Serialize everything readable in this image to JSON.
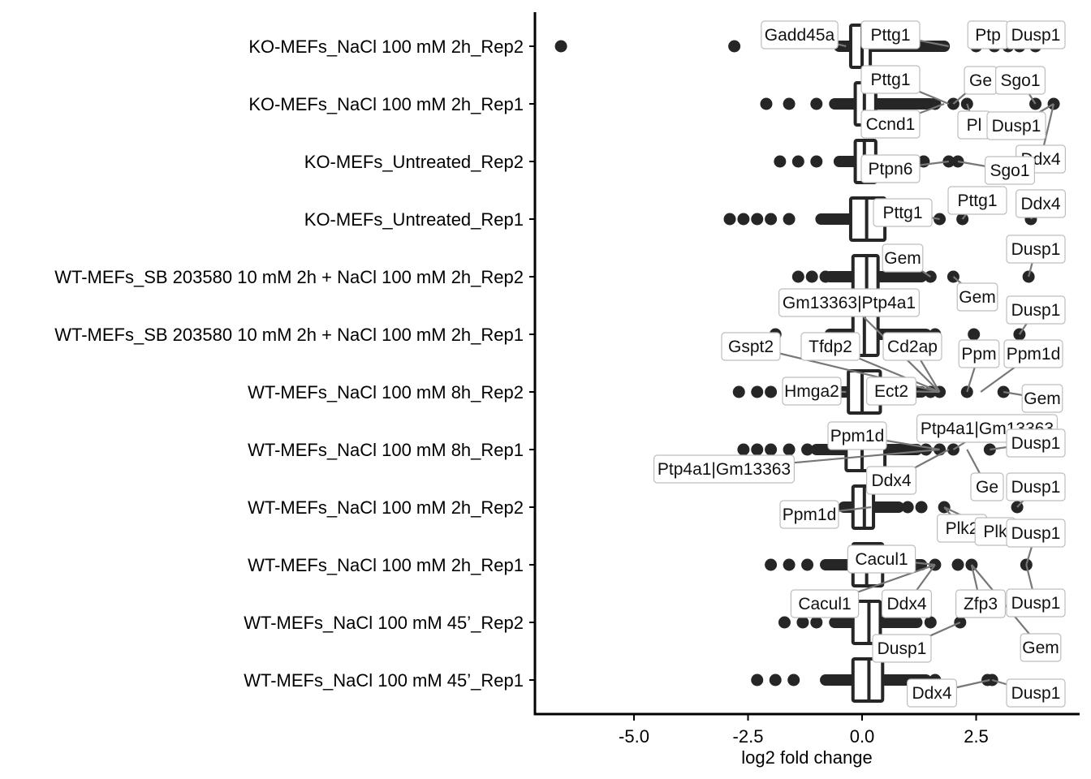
{
  "chart_data": {
    "type": "boxplot",
    "xlabel": "log2 fold change",
    "xlim": [
      -7.2,
      4.8
    ],
    "xticks": [
      -5.0,
      -2.5,
      0.0,
      2.5
    ],
    "xtick_labels": [
      "-5.0",
      "-2.5",
      "0.0",
      "2.5"
    ],
    "grid": false,
    "colors": {
      "points": "#262626",
      "box": "#262626",
      "label_border": "#bdbdbd",
      "connector": "#777777"
    },
    "categories": [
      "KO-MEFs_NaCl 100 mM 2h_Rep2",
      "KO-MEFs_NaCl 100 mM 2h_Rep1",
      "KO-MEFs_Untreated_Rep2",
      "KO-MEFs_Untreated_Rep1",
      "WT-MEFs_SB 203580 10 mM 2h + NaCl 100 mM 2h_Rep2",
      "WT-MEFs_SB 203580 10 mM 2h + NaCl 100 mM 2h_Rep1",
      "WT-MEFs_NaCl 100 mM 8h_Rep2",
      "WT-MEFs_NaCl 100 mM 8h_Rep1",
      "WT-MEFs_NaCl 100 mM 2h_Rep2",
      "WT-MEFs_NaCl 100 mM 2h_Rep1",
      "WT-MEFs_NaCl 100 mM 45’_Rep2",
      "WT-MEFs_NaCl 100 mM 45’_Rep1"
    ],
    "boxes": [
      {
        "q1": -0.25,
        "median": 0.0,
        "q3": 0.18,
        "whisker_low": -0.5,
        "whisker_high": 1.8,
        "outliers": [
          -6.6,
          -2.8,
          2.5,
          2.9,
          3.2,
          3.45,
          3.8
        ]
      },
      {
        "q1": -0.15,
        "median": 0.05,
        "q3": 0.3,
        "whisker_low": -0.6,
        "whisker_high": 1.5,
        "outliers": [
          -2.1,
          -1.6,
          -1.0,
          1.6,
          2.0,
          2.3,
          3.8,
          4.2
        ]
      },
      {
        "q1": -0.15,
        "median": 0.05,
        "q3": 0.3,
        "whisker_low": -0.5,
        "whisker_high": 0.8,
        "outliers": [
          -1.8,
          -1.4,
          -1.0,
          1.35,
          1.9,
          2.1
        ]
      },
      {
        "q1": -0.25,
        "median": 0.1,
        "q3": 0.5,
        "whisker_low": -0.9,
        "whisker_high": 1.2,
        "outliers": [
          -2.9,
          -2.6,
          -2.3,
          -2.0,
          -1.6,
          1.7,
          2.2,
          3.7
        ]
      },
      {
        "q1": -0.2,
        "median": 0.1,
        "q3": 0.35,
        "whisker_low": -0.7,
        "whisker_high": 1.3,
        "outliers": [
          -1.4,
          -1.1,
          -0.8,
          1.5,
          2.0,
          3.65
        ]
      },
      {
        "q1": -0.2,
        "median": 0.05,
        "q3": 0.35,
        "whisker_low": -0.7,
        "whisker_high": 1.4,
        "outliers": [
          -1.9,
          1.6,
          2.45,
          3.45
        ]
      },
      {
        "q1": -0.3,
        "median": 0.0,
        "q3": 0.4,
        "whisker_low": -0.8,
        "whisker_high": 1.3,
        "outliers": [
          -2.7,
          -2.3,
          -2.0,
          -1.6,
          -1.2,
          1.5,
          1.7,
          2.3,
          3.1
        ]
      },
      {
        "q1": -0.35,
        "median": 0.0,
        "q3": 0.5,
        "whisker_low": -1.0,
        "whisker_high": 1.2,
        "outliers": [
          -2.6,
          -2.3,
          -2.0,
          -1.6,
          -1.2,
          1.4,
          1.7,
          2.0,
          2.8
        ]
      },
      {
        "q1": -0.2,
        "median": 0.05,
        "q3": 0.25,
        "whisker_low": -0.4,
        "whisker_high": 0.8,
        "outliers": [
          1.0,
          1.3,
          1.8,
          3.4
        ]
      },
      {
        "q1": -0.2,
        "median": 0.1,
        "q3": 0.45,
        "whisker_low": -0.8,
        "whisker_high": 1.3,
        "outliers": [
          -2.0,
          -1.6,
          -1.2,
          1.6,
          2.1,
          2.4,
          3.6
        ]
      },
      {
        "q1": -0.2,
        "median": 0.15,
        "q3": 0.4,
        "whisker_low": -0.6,
        "whisker_high": 1.2,
        "outliers": [
          -1.7,
          -1.3,
          -1.0,
          1.5,
          2.15
        ]
      },
      {
        "q1": -0.2,
        "median": 0.15,
        "q3": 0.45,
        "whisker_low": -0.8,
        "whisker_high": 1.4,
        "outliers": [
          -2.3,
          -1.9,
          -1.5,
          1.6,
          2.75,
          2.85
        ]
      }
    ],
    "annotations": [
      {
        "label": "Gadd45a",
        "row": 0,
        "x": -0.35
      },
      {
        "label": "Pttg1",
        "row": 0,
        "x": 1.9
      },
      {
        "label": "Ptp",
        "row": 0,
        "x": 2.5
      },
      {
        "label": "Dusp1",
        "row": 0,
        "x": 3.8
      },
      {
        "label": "Pttg1",
        "row": 1,
        "x": 1.9
      },
      {
        "label": "Ge",
        "row": 1,
        "x": 2.0
      },
      {
        "label": "Sgo1",
        "row": 1,
        "x": 3.8
      },
      {
        "label": "Ccnd1",
        "row": 1,
        "x": 1.8
      },
      {
        "label": "Pl",
        "row": 1,
        "x": 2.3
      },
      {
        "label": "Dusp1",
        "row": 1,
        "x": 4.2
      },
      {
        "label": "Ddx4",
        "row": 1,
        "x": 4.2
      },
      {
        "label": "Ptpn6",
        "row": 2,
        "x": 1.9
      },
      {
        "label": "Sgo1",
        "row": 2,
        "x": 2.1
      },
      {
        "label": "Pttg1",
        "row": 3,
        "x": 1.7
      },
      {
        "label": "Ddx4",
        "row": 3,
        "x": 3.7
      },
      {
        "label": "Pttg1",
        "row": 3,
        "x": 2.2
      },
      {
        "label": "Dusp1",
        "row": 4,
        "x": 3.65
      },
      {
        "label": "Gem",
        "row": 4,
        "x": 1.5
      },
      {
        "label": "Gem",
        "row": 4,
        "x": 2.0
      },
      {
        "label": "Dusp1",
        "row": 5,
        "x": 3.45
      },
      {
        "label": "Gm13363|Ptp4a1",
        "row": 6,
        "x": 1.7
      },
      {
        "label": "Gspt2",
        "row": 6,
        "x": 1.7
      },
      {
        "label": "Tfdp2",
        "row": 6,
        "x": 1.7
      },
      {
        "label": "Cd2ap",
        "row": 6,
        "x": 1.7
      },
      {
        "label": "Ppm",
        "row": 6,
        "x": 2.3
      },
      {
        "label": "Ppm1d",
        "row": 6,
        "x": 2.6
      },
      {
        "label": "Hmga2",
        "row": 6,
        "x": -0.35
      },
      {
        "label": "Ect2",
        "row": 6,
        "x": 1.7
      },
      {
        "label": "Gem",
        "row": 6,
        "x": 3.1
      },
      {
        "label": "Ptp4a1|Gm13363",
        "row": 7,
        "x": 2.0
      },
      {
        "label": "Ppm1d",
        "row": 7,
        "x": 1.7
      },
      {
        "label": "Dusp1",
        "row": 7,
        "x": 2.8
      },
      {
        "label": "Ptp4a1|Gm13363",
        "row": 7,
        "x": 1.7
      },
      {
        "label": "Ddx4",
        "row": 7,
        "x": 1.9
      },
      {
        "label": "Ge",
        "row": 7,
        "x": 2.3
      },
      {
        "label": "Dusp1",
        "row": 8,
        "x": 3.4
      },
      {
        "label": "Ppm1d",
        "row": 8,
        "x": 0.2
      },
      {
        "label": "Plk2",
        "row": 8,
        "x": 1.8
      },
      {
        "label": "Plk",
        "row": 8,
        "x": 1.8
      },
      {
        "label": "Dusp1",
        "row": 9,
        "x": 3.6
      },
      {
        "label": "Cacul1",
        "row": 9,
        "x": 1.6
      },
      {
        "label": "Cacul1",
        "row": 9,
        "x": 1.6
      },
      {
        "label": "Ddx4",
        "row": 9,
        "x": 1.6
      },
      {
        "label": "Zfp3",
        "row": 9,
        "x": 2.4
      },
      {
        "label": "Dusp1",
        "row": 9,
        "x": 3.6
      },
      {
        "label": "Gem",
        "row": 9,
        "x": 2.4
      },
      {
        "label": "Dusp1",
        "row": 10,
        "x": 2.15
      },
      {
        "label": "Ddx4",
        "row": 11,
        "x": 2.8
      },
      {
        "label": "Dusp1",
        "row": 11,
        "x": 2.85
      }
    ]
  }
}
